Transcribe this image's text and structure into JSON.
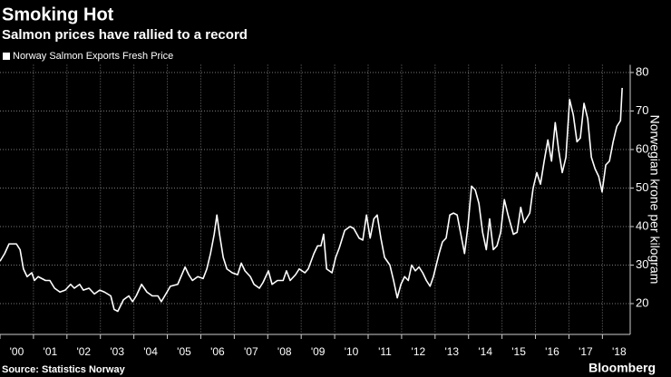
{
  "chart_data": {
    "type": "line",
    "title": "Smoking Hot",
    "subtitle": "Salmon prices have rallied to a record",
    "y_label": "Norwegian krone per kilogram",
    "source": "Source: Statistics Norway",
    "brand": "Bloomberg",
    "x": [
      2000.0,
      2000.14,
      2000.27,
      2000.49,
      2000.6,
      2000.7,
      2000.81,
      2000.95,
      2001.03,
      2001.14,
      2001.36,
      2001.49,
      2001.63,
      2001.79,
      2001.95,
      2002.11,
      2002.22,
      2002.38,
      2002.49,
      2002.66,
      2002.82,
      2002.98,
      2003.12,
      2003.31,
      2003.41,
      2003.52,
      2003.69,
      2003.85,
      2003.96,
      2004.07,
      2004.23,
      2004.39,
      2004.55,
      2004.72,
      2004.82,
      2004.99,
      2005.09,
      2005.31,
      2005.53,
      2005.64,
      2005.75,
      2005.91,
      2006.07,
      2006.18,
      2006.29,
      2006.4,
      2006.48,
      2006.56,
      2006.67,
      2006.78,
      2006.94,
      2007.1,
      2007.21,
      2007.32,
      2007.48,
      2007.59,
      2007.75,
      2007.86,
      2008.02,
      2008.13,
      2008.29,
      2008.46,
      2008.56,
      2008.67,
      2008.83,
      2008.94,
      2009.11,
      2009.21,
      2009.38,
      2009.49,
      2009.59,
      2009.67,
      2009.76,
      2009.92,
      2010.03,
      2010.14,
      2010.3,
      2010.46,
      2010.57,
      2010.73,
      2010.84,
      2010.95,
      2011.06,
      2011.17,
      2011.27,
      2011.38,
      2011.49,
      2011.65,
      2011.76,
      2011.87,
      2011.98,
      2012.09,
      2012.2,
      2012.3,
      2012.41,
      2012.52,
      2012.63,
      2012.74,
      2012.85,
      2012.95,
      2013.12,
      2013.22,
      2013.33,
      2013.44,
      2013.55,
      2013.66,
      2013.77,
      2013.88,
      2013.98,
      2014.09,
      2014.2,
      2014.31,
      2014.42,
      2014.53,
      2014.63,
      2014.74,
      2014.85,
      2014.96,
      2015.07,
      2015.18,
      2015.34,
      2015.45,
      2015.56,
      2015.66,
      2015.83,
      2015.93,
      2016.04,
      2016.15,
      2016.26,
      2016.37,
      2016.48,
      2016.59,
      2016.69,
      2016.8,
      2016.91,
      2017.02,
      2017.13,
      2017.24,
      2017.34,
      2017.45,
      2017.56,
      2017.67,
      2017.78,
      2017.89,
      2017.99,
      2018.1,
      2018.21,
      2018.32,
      2018.43,
      2018.54,
      2018.59
    ],
    "series": [
      {
        "name": "Norway Salmon Exports Fresh Price",
        "color": "#ffffff",
        "values": [
          31,
          33,
          35.5,
          35.5,
          34,
          29,
          27,
          28,
          26,
          27,
          26,
          26,
          24,
          23,
          23.5,
          25,
          24,
          25,
          23.5,
          24,
          22.5,
          23.5,
          23,
          22,
          18.5,
          18,
          21,
          22,
          20.5,
          22,
          25,
          23,
          22,
          22,
          20.5,
          23,
          24.5,
          25,
          29.5,
          27.5,
          26,
          27,
          26.5,
          29,
          33,
          38,
          43,
          38,
          32,
          29,
          28,
          27.5,
          30.5,
          28.5,
          27,
          25,
          24,
          25.5,
          28.5,
          25,
          26,
          26,
          28.5,
          26,
          27.5,
          29,
          28,
          29,
          33,
          35,
          35,
          38,
          29,
          28,
          32,
          34.5,
          39,
          40,
          39.5,
          37,
          36.5,
          43,
          37,
          42,
          43,
          37,
          32,
          30,
          26,
          21.5,
          25,
          27,
          26,
          30,
          28.5,
          29.5,
          28,
          26,
          24.5,
          27,
          33,
          36,
          37,
          43,
          43.5,
          43,
          38,
          33,
          40,
          50.5,
          49.5,
          46,
          38.5,
          34,
          42,
          34,
          35,
          38.5,
          47,
          43,
          38,
          38.5,
          45,
          41,
          43.5,
          50,
          54,
          51,
          57,
          62.5,
          57,
          67,
          60,
          54,
          58,
          73,
          69,
          62,
          63,
          72,
          68,
          58,
          55,
          53,
          49,
          56,
          57,
          62,
          66,
          67.5,
          76
        ]
      }
    ],
    "xlim": [
      2000,
      2018.83
    ],
    "xticks": [
      {
        "value": 2000,
        "label": "'00"
      },
      {
        "value": 2001,
        "label": "'01"
      },
      {
        "value": 2002,
        "label": "'02"
      },
      {
        "value": 2003,
        "label": "'03"
      },
      {
        "value": 2004,
        "label": "'04"
      },
      {
        "value": 2005,
        "label": "'05"
      },
      {
        "value": 2006,
        "label": "'06"
      },
      {
        "value": 2007,
        "label": "'07"
      },
      {
        "value": 2008,
        "label": "'08"
      },
      {
        "value": 2009,
        "label": "'09"
      },
      {
        "value": 2010,
        "label": "'10"
      },
      {
        "value": 2011,
        "label": "'11"
      },
      {
        "value": 2012,
        "label": "'12"
      },
      {
        "value": 2013,
        "label": "'13"
      },
      {
        "value": 2014,
        "label": "'14"
      },
      {
        "value": 2015,
        "label": "'15"
      },
      {
        "value": 2016,
        "label": "'16"
      },
      {
        "value": 2017,
        "label": "'17"
      },
      {
        "value": 2018,
        "label": "'18"
      }
    ],
    "ylim": [
      12,
      82
    ],
    "yticks": [
      20,
      30,
      40,
      50,
      60,
      70,
      80
    ],
    "grid": true,
    "legend": "top-left"
  }
}
